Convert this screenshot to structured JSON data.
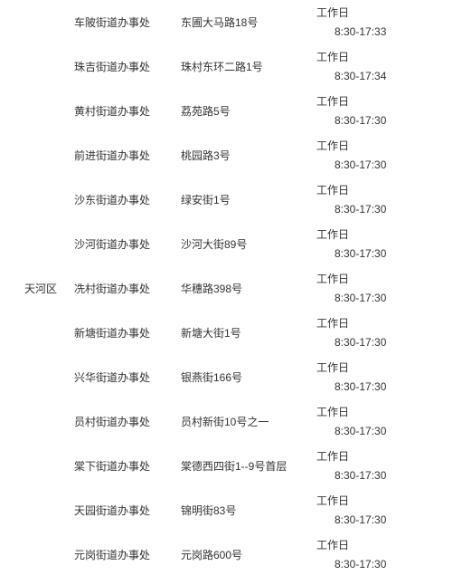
{
  "district": "天河区",
  "rows": [
    {
      "office": "车陂街道办事处",
      "address": "东圃大马路18号",
      "day": "工作日",
      "time": "8:30-17:33"
    },
    {
      "office": "珠吉街道办事处",
      "address": "珠村东环二路1号",
      "day": "工作日",
      "time": "8:30-17:34"
    },
    {
      "office": "黄村街道办事处",
      "address": "荔苑路5号",
      "day": "工作日",
      "time": "8:30-17:30"
    },
    {
      "office": "前进街道办事处",
      "address": "桃园路3号",
      "day": "工作日",
      "time": "8:30-17:30"
    },
    {
      "office": "沙东街道办事处",
      "address": "绿安街1号",
      "day": "工作日",
      "time": "8:30-17:30"
    },
    {
      "office": "沙河街道办事处",
      "address": "沙河大街89号",
      "day": "工作日",
      "time": "8:30-17:30"
    },
    {
      "office": "冼村街道办事处",
      "address": "华穗路398号",
      "day": "工作日",
      "time": "8:30-17:30"
    },
    {
      "office": "新塘街道办事处",
      "address": "新塘大街1号",
      "day": "工作日",
      "time": "8:30-17:30"
    },
    {
      "office": "兴华街道办事处",
      "address": "银燕街166号",
      "day": "工作日",
      "time": "8:30-17:30"
    },
    {
      "office": "员村街道办事处",
      "address": "员村新街10号之一",
      "day": "工作日",
      "time": "8:30-17:30"
    },
    {
      "office": "棠下街道办事处",
      "address": "棠德西四街1--9号首层",
      "day": "工作日",
      "time": "8:30-17:30"
    },
    {
      "office": "天园街道办事处",
      "address": "锦明街83号",
      "day": "工作日",
      "time": "8:30-17:30"
    },
    {
      "office": "元岗街道办事处",
      "address": "元岗路600号",
      "day": "工作日",
      "time": "8:30-17:30"
    }
  ]
}
